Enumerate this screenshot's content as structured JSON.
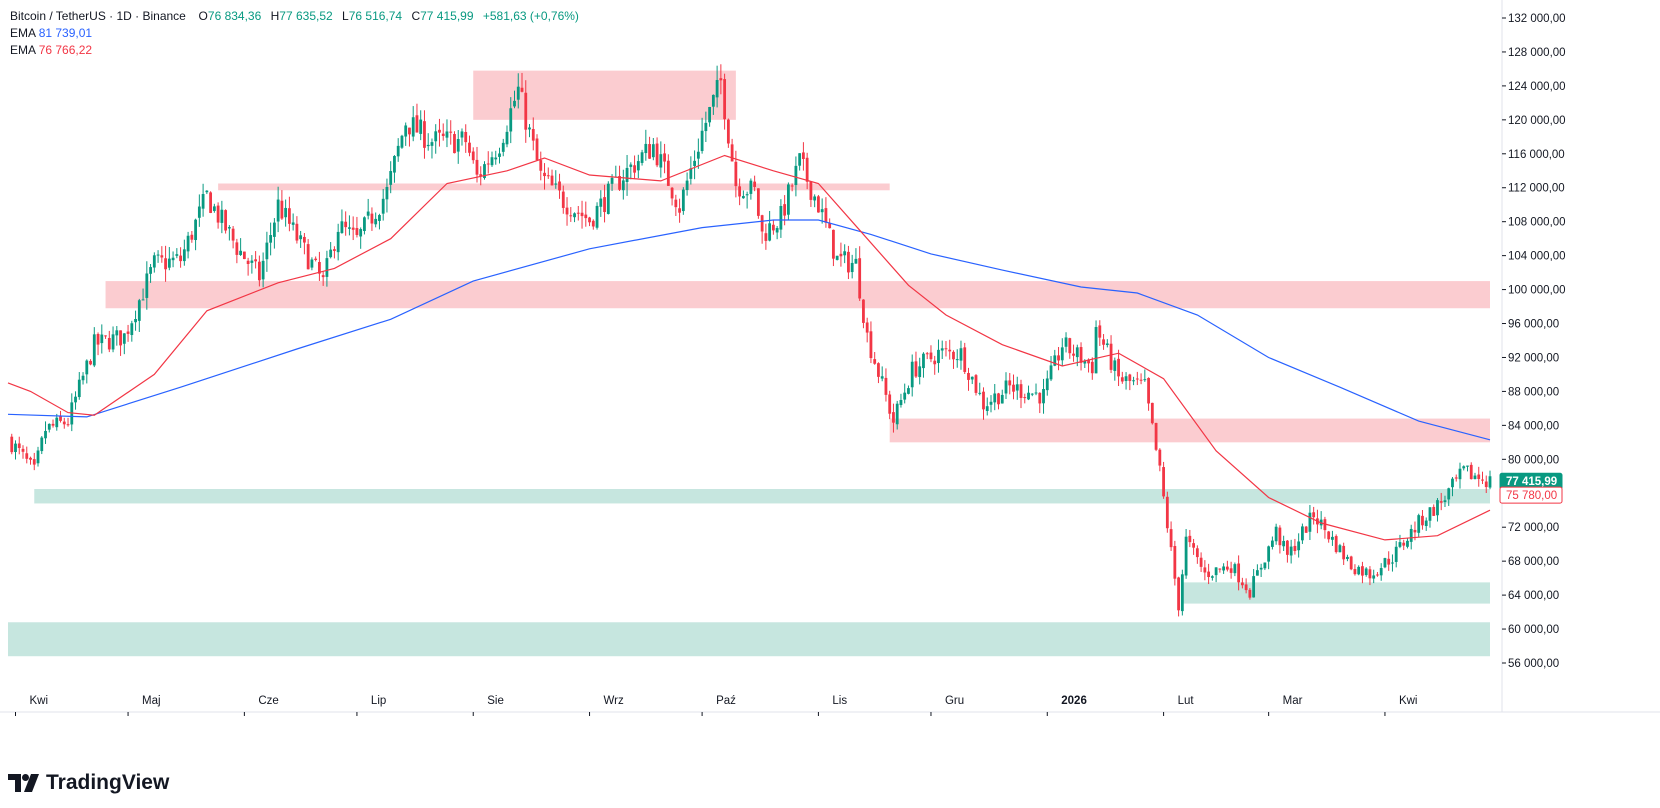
{
  "legend": {
    "symbol": "Bitcoin / TetherUS · 1D · Binance",
    "open_label": "O",
    "open": "76 834,36",
    "high_label": "H",
    "high": "77 635,52",
    "low_label": "L",
    "low": "76 516,74",
    "close_label": "C",
    "close": "77 415,99",
    "change": "+581,63 (+0,76%)",
    "ema1_label": "EMA",
    "ema1_value": "81 739,01",
    "ema2_label": "EMA",
    "ema2_value": "76 766,22"
  },
  "brand": "TradingView",
  "colors": {
    "up": "#089981",
    "down": "#f23645",
    "ema_slow": "#2962ff",
    "ema_fast": "#f23645",
    "resistance_zone": "#fbc9cd",
    "support_zone": "#c3e5dd"
  },
  "chart_data": {
    "type": "candlestick",
    "title": "Bitcoin / TetherUS · 1D · Binance",
    "y_axis": {
      "min": 54000,
      "max": 133500,
      "ticks": [
        56000,
        60000,
        64000,
        68000,
        72000,
        76000,
        80000,
        84000,
        88000,
        92000,
        96000,
        100000,
        104000,
        108000,
        112000,
        116000,
        120000,
        124000,
        128000,
        132000
      ],
      "tick_labels": [
        "56 000,00",
        "60 000,00",
        "64 000,00",
        "68 000,00",
        "72 000,00",
        "76 000,00",
        "80 000,00",
        "84 000,00",
        "88 000,00",
        "92 000,00",
        "96 000,00",
        "100 000,00",
        "104 000,00",
        "108 000,00",
        "112 000,00",
        "116 000,00",
        "120 000,00",
        "124 000,00",
        "128 000,00",
        "132 000,00"
      ]
    },
    "x_axis": {
      "start": "2025-03-30",
      "end": "2026-04-29",
      "months": [
        {
          "date": "2025-04-01",
          "label": "Kwi",
          "bold": false
        },
        {
          "date": "2025-05-01",
          "label": "Maj",
          "bold": false
        },
        {
          "date": "2025-06-01",
          "label": "Cze",
          "bold": false
        },
        {
          "date": "2025-07-01",
          "label": "Lip",
          "bold": false
        },
        {
          "date": "2025-08-01",
          "label": "Sie",
          "bold": false
        },
        {
          "date": "2025-09-01",
          "label": "Wrz",
          "bold": false
        },
        {
          "date": "2025-10-01",
          "label": "Paź",
          "bold": false
        },
        {
          "date": "2025-11-01",
          "label": "Lis",
          "bold": false
        },
        {
          "date": "2025-12-01",
          "label": "Gru",
          "bold": false
        },
        {
          "date": "2026-01-01",
          "label": "2026",
          "bold": true
        },
        {
          "date": "2026-02-01",
          "label": "Lut",
          "bold": false
        },
        {
          "date": "2026-03-01",
          "label": "Mar",
          "bold": false
        },
        {
          "date": "2026-04-01",
          "label": "Kwi",
          "bold": false
        }
      ]
    },
    "close_path": [
      [
        "2025-03-30",
        82500
      ],
      [
        "2025-04-06",
        78500
      ],
      [
        "2025-04-09",
        83500
      ],
      [
        "2025-04-15",
        84500
      ],
      [
        "2025-04-22",
        93500
      ],
      [
        "2025-04-30",
        94500
      ],
      [
        "2025-05-08",
        103000
      ],
      [
        "2025-05-15",
        103500
      ],
      [
        "2025-05-22",
        111000
      ],
      [
        "2025-05-30",
        105000
      ],
      [
        "2025-06-05",
        101500
      ],
      [
        "2025-06-10",
        110000
      ],
      [
        "2025-06-17",
        104500
      ],
      [
        "2025-06-22",
        100800
      ],
      [
        "2025-06-26",
        107500
      ],
      [
        "2025-07-01",
        105800
      ],
      [
        "2025-07-09",
        111500
      ],
      [
        "2025-07-14",
        119800
      ],
      [
        "2025-07-21",
        117500
      ],
      [
        "2025-07-30",
        117500
      ],
      [
        "2025-08-02",
        113200
      ],
      [
        "2025-08-08",
        117300
      ],
      [
        "2025-08-13",
        123500
      ],
      [
        "2025-08-19",
        113300
      ],
      [
        "2025-08-25",
        110500
      ],
      [
        "2025-09-01",
        108200
      ],
      [
        "2025-09-10",
        113500
      ],
      [
        "2025-09-18",
        117000
      ],
      [
        "2025-09-25",
        109800
      ],
      [
        "2025-10-01",
        118500
      ],
      [
        "2025-10-06",
        124500
      ],
      [
        "2025-10-10",
        112500
      ],
      [
        "2025-10-15",
        111500
      ],
      [
        "2025-10-17",
        106500
      ],
      [
        "2025-10-22",
        108500
      ],
      [
        "2025-10-27",
        115000
      ],
      [
        "2025-11-01",
        110000
      ],
      [
        "2025-11-06",
        103500
      ],
      [
        "2025-11-11",
        103000
      ],
      [
        "2025-11-14",
        94500
      ],
      [
        "2025-11-21",
        84500
      ],
      [
        "2025-11-26",
        90500
      ],
      [
        "2025-12-03",
        92500
      ],
      [
        "2025-12-09",
        92500
      ],
      [
        "2025-12-15",
        86500
      ],
      [
        "2025-12-22",
        88500
      ],
      [
        "2025-12-31",
        87500
      ],
      [
        "2026-01-05",
        93500
      ],
      [
        "2026-01-13",
        91000
      ],
      [
        "2026-01-14",
        95500
      ],
      [
        "2026-01-20",
        89500
      ],
      [
        "2026-01-27",
        88500
      ],
      [
        "2026-01-31",
        78500
      ],
      [
        "2026-02-05",
        62800
      ],
      [
        "2026-02-07",
        70500
      ],
      [
        "2026-02-12",
        66500
      ],
      [
        "2026-02-19",
        67500
      ],
      [
        "2026-02-24",
        64500
      ],
      [
        "2026-03-03",
        71500
      ],
      [
        "2026-03-06",
        68500
      ],
      [
        "2026-03-13",
        73500
      ],
      [
        "2026-03-18",
        70500
      ],
      [
        "2026-03-23",
        67500
      ],
      [
        "2026-03-28",
        66500
      ],
      [
        "2026-04-03",
        68500
      ],
      [
        "2026-04-10",
        72500
      ],
      [
        "2026-04-16",
        75000
      ],
      [
        "2026-04-22",
        78500
      ],
      [
        "2026-04-29",
        77416
      ]
    ],
    "ema_slow": {
      "color": "#2962ff",
      "last_value": 81739.01,
      "points": [
        [
          "2025-03-30",
          85300
        ],
        [
          "2025-04-20",
          85000
        ],
        [
          "2025-05-15",
          88500
        ],
        [
          "2025-06-15",
          93000
        ],
        [
          "2025-07-10",
          96500
        ],
        [
          "2025-08-01",
          101000
        ],
        [
          "2025-09-01",
          104800
        ],
        [
          "2025-10-01",
          107300
        ],
        [
          "2025-10-20",
          108200
        ],
        [
          "2025-11-01",
          108200
        ],
        [
          "2025-11-15",
          106500
        ],
        [
          "2025-12-01",
          104200
        ],
        [
          "2025-12-20",
          102300
        ],
        [
          "2026-01-10",
          100300
        ],
        [
          "2026-01-25",
          99600
        ],
        [
          "2026-02-10",
          97000
        ],
        [
          "2026-03-01",
          92000
        ],
        [
          "2026-03-20",
          88500
        ],
        [
          "2026-04-10",
          84500
        ],
        [
          "2026-04-29",
          82300
        ]
      ]
    },
    "ema_fast": {
      "color": "#f23645",
      "last_value": 76766.22,
      "points": [
        [
          "2025-03-30",
          89000
        ],
        [
          "2025-04-05",
          88000
        ],
        [
          "2025-04-15",
          85500
        ],
        [
          "2025-04-22",
          85200
        ],
        [
          "2025-05-08",
          90000
        ],
        [
          "2025-05-22",
          97500
        ],
        [
          "2025-06-10",
          100800
        ],
        [
          "2025-06-25",
          102500
        ],
        [
          "2025-07-10",
          106000
        ],
        [
          "2025-07-25",
          112500
        ],
        [
          "2025-08-10",
          114000
        ],
        [
          "2025-08-20",
          115500
        ],
        [
          "2025-09-01",
          113500
        ],
        [
          "2025-09-20",
          112800
        ],
        [
          "2025-10-07",
          115800
        ],
        [
          "2025-10-20",
          114000
        ],
        [
          "2025-11-01",
          112500
        ],
        [
          "2025-11-12",
          107000
        ],
        [
          "2025-11-25",
          100500
        ],
        [
          "2025-12-05",
          97000
        ],
        [
          "2025-12-20",
          93500
        ],
        [
          "2026-01-05",
          91000
        ],
        [
          "2026-01-20",
          92500
        ],
        [
          "2026-02-01",
          89500
        ],
        [
          "2026-02-15",
          81000
        ],
        [
          "2026-03-01",
          75500
        ],
        [
          "2026-03-15",
          72500
        ],
        [
          "2026-04-01",
          70500
        ],
        [
          "2026-04-15",
          71000
        ],
        [
          "2026-04-29",
          74000
        ]
      ]
    },
    "zones": [
      {
        "kind": "resistance",
        "from": "2025-08-01",
        "to": "2025-10-10",
        "low": 120000,
        "high": 125800
      },
      {
        "kind": "resistance",
        "from": "2025-05-25",
        "to": "2025-11-20",
        "low": 111700,
        "high": 112500
      },
      {
        "kind": "resistance",
        "from": "2025-04-25",
        "to": "2026-04-29",
        "low": 97800,
        "high": 101000
      },
      {
        "kind": "resistance",
        "from": "2025-11-20",
        "to": "2026-04-29",
        "low": 82000,
        "high": 84800
      },
      {
        "kind": "support",
        "from": "2025-04-06",
        "to": "2026-04-29",
        "low": 74800,
        "high": 76500
      },
      {
        "kind": "support",
        "from": "2026-02-06",
        "to": "2026-04-29",
        "low": 63000,
        "high": 65500
      },
      {
        "kind": "support",
        "from": "2025-03-30",
        "to": "2026-04-29",
        "low": 56800,
        "high": 60800
      }
    ],
    "price_labels": [
      {
        "value": 77415.99,
        "text": "77 415,99",
        "color": "#089981"
      },
      {
        "value": 75780.0,
        "text": "75 780,00",
        "color": "#f23645"
      }
    ]
  }
}
